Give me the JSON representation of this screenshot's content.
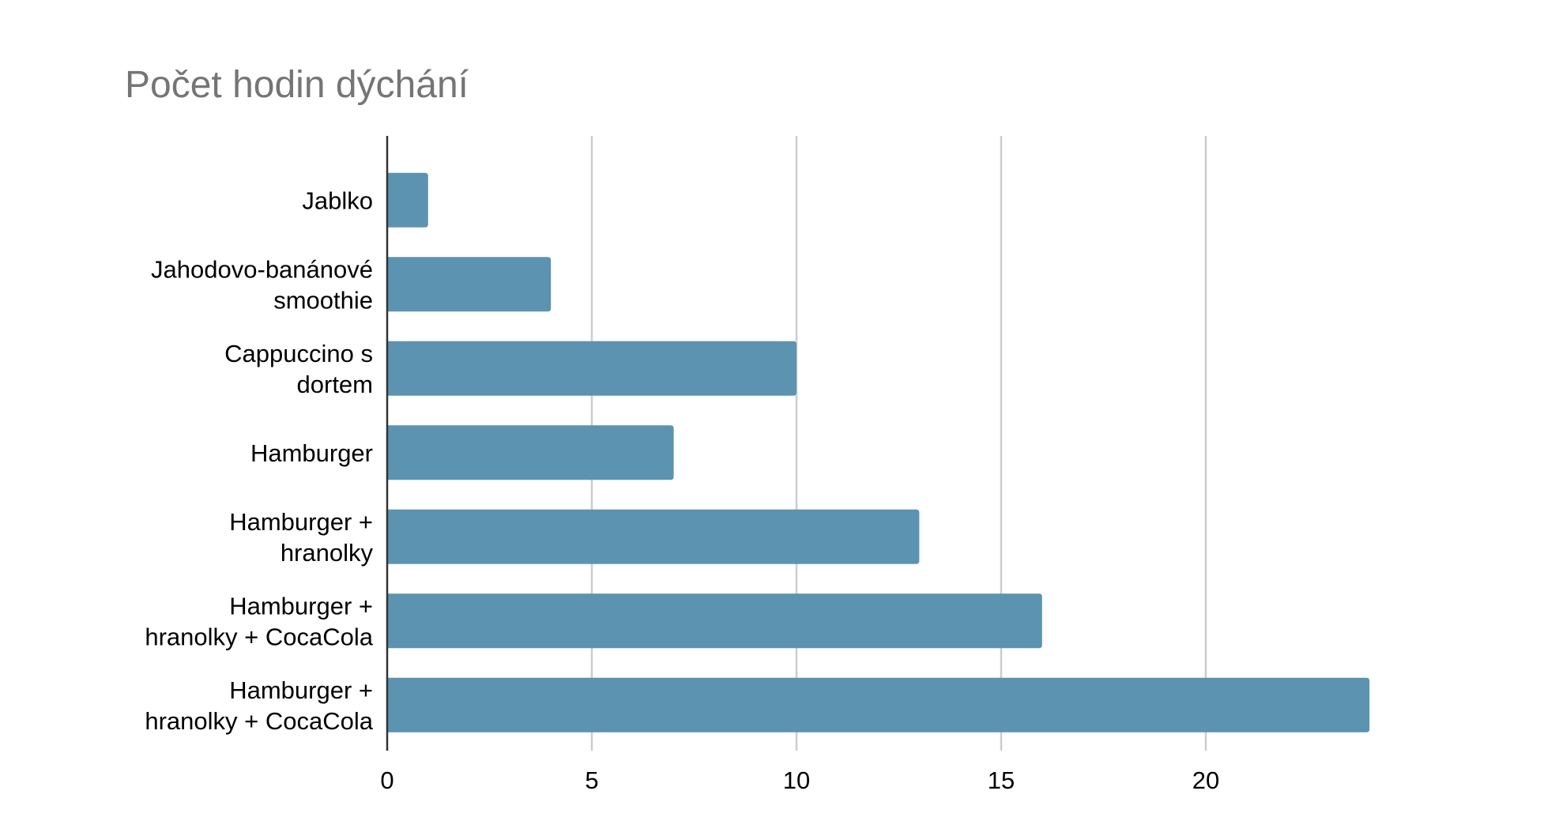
{
  "chart_data": {
    "type": "bar",
    "orientation": "horizontal",
    "title": "Počet hodin dýchání",
    "xlabel": "",
    "ylabel": "",
    "categories": [
      [
        "Jablko"
      ],
      [
        "Jahodovo-banánové",
        "smoothie"
      ],
      [
        "Cappuccino s",
        "dortem"
      ],
      [
        "Hamburger"
      ],
      [
        "Hamburger +",
        "hranolky"
      ],
      [
        "Hamburger +",
        "hranolky + CocaCola"
      ],
      [
        "Hamburger +",
        "hranolky + CocaCola"
      ]
    ],
    "values": [
      1,
      4,
      10,
      7,
      13,
      16,
      24
    ],
    "xlim": [
      0,
      24
    ],
    "xticks": [
      0,
      5,
      10,
      15,
      20
    ],
    "grid": true,
    "legend": "none",
    "bar_color": "#5b93b0"
  }
}
